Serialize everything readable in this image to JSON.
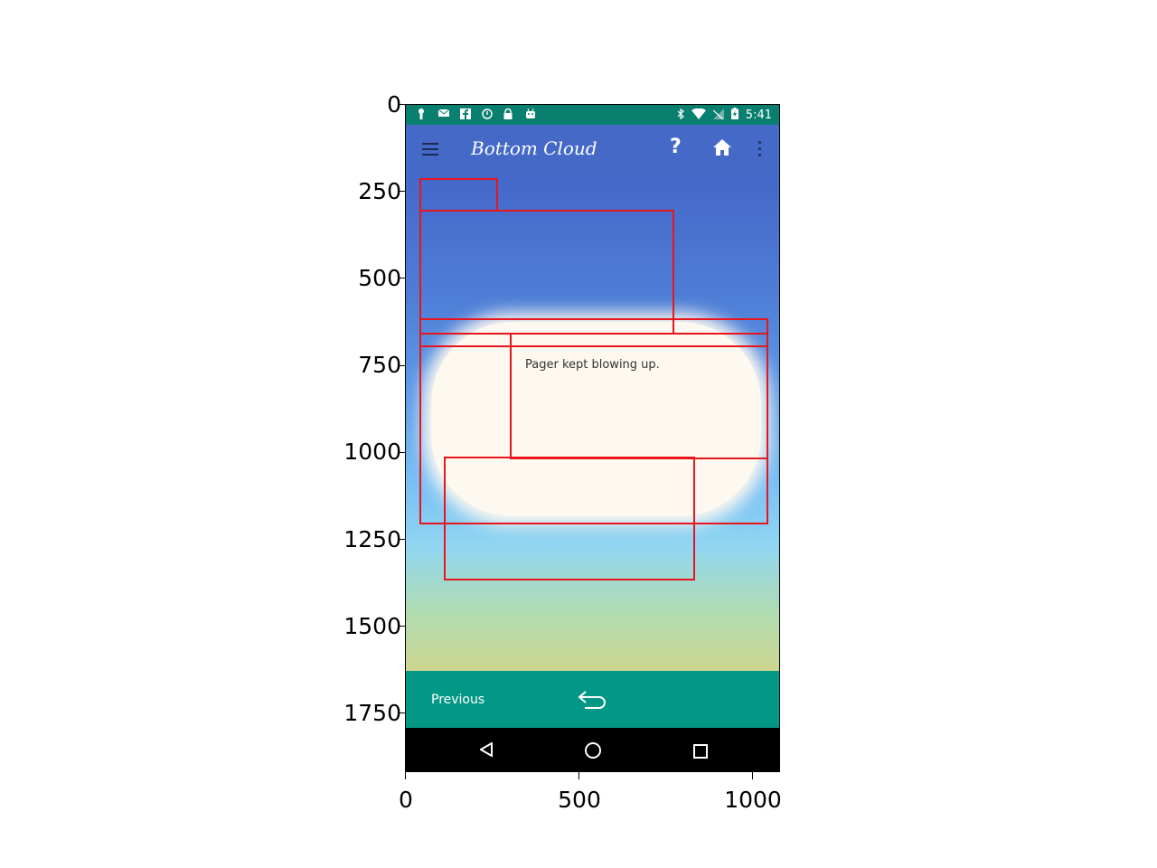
{
  "axes": {
    "y_ticks": [
      "0",
      "250",
      "500",
      "750",
      "1000",
      "1250",
      "1500",
      "1750"
    ],
    "x_ticks": [
      "0",
      "500",
      "1000"
    ]
  },
  "status_bar": {
    "time": "5:41",
    "icons": [
      "key-icon",
      "mail-icon",
      "facebook-icon",
      "circle-info-icon",
      "lock-icon",
      "android-icon",
      "bluetooth-icon",
      "wifi-icon",
      "signal-off-icon",
      "battery-icon"
    ]
  },
  "app_bar": {
    "title": "Bottom Cloud",
    "help_label": "?",
    "icons": [
      "menu-icon",
      "help-icon",
      "home-icon",
      "more-vert-icon"
    ]
  },
  "main": {
    "cloud_message": "Pager kept blowing up."
  },
  "bottom_bar": {
    "previous_label": "Previous"
  },
  "colors": {
    "status_bar": "#097f6f",
    "app_bar": "#4469c7",
    "bottom_bar": "#039886",
    "bbox": "#e8151c"
  }
}
